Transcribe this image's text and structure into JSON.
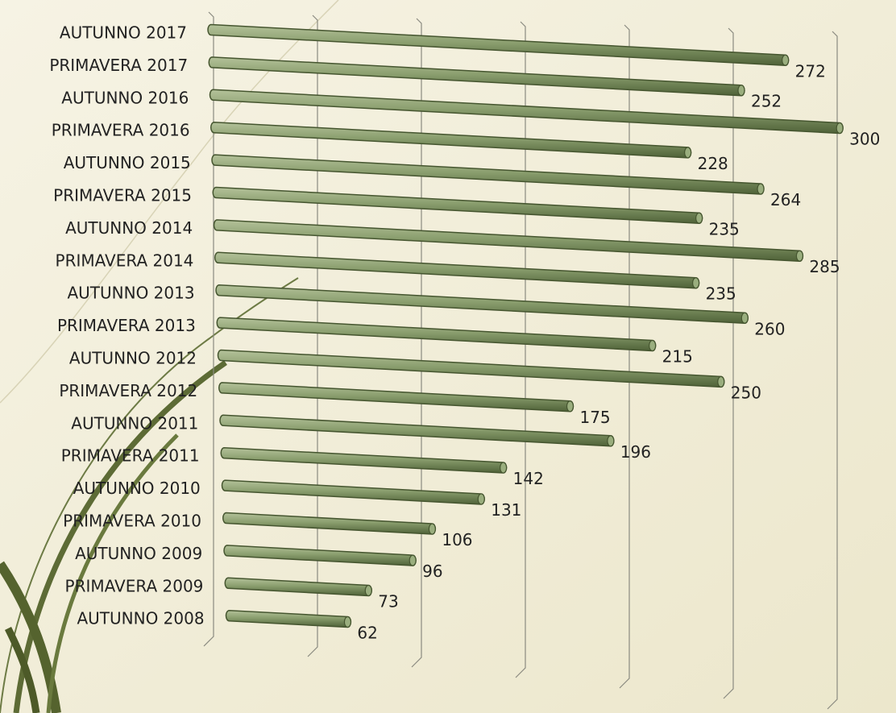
{
  "chart_data": {
    "type": "bar",
    "orientation": "horizontal",
    "categories": [
      "AUTUNNO 2017",
      "PRIMAVERA 2017",
      "AUTUNNO 2016",
      "PRIMAVERA 2016",
      "AUTUNNO 2015",
      "PRIMAVERA 2015",
      "AUTUNNO 2014",
      "PRIMAVERA 2014",
      "AUTUNNO 2013",
      "PRIMAVERA 2013",
      "AUTUNNO 2012",
      "PRIMAVERA 2012",
      "AUTUNNO 2011",
      "PRIMAVERA 2011",
      "AUTUNNO 2010",
      "PRIMAVERA 2010",
      "AUTUNNO 2009",
      "PRIMAVERA 2009",
      "AUTUNNO 2008"
    ],
    "values": [
      272,
      252,
      300,
      228,
      264,
      235,
      285,
      235,
      260,
      215,
      250,
      175,
      196,
      142,
      131,
      106,
      96,
      73,
      62
    ],
    "color": "#8a9e6e",
    "xlim": [
      0,
      300
    ],
    "xticks": [
      0,
      50,
      100,
      150,
      200,
      250,
      300
    ],
    "grid": true
  }
}
